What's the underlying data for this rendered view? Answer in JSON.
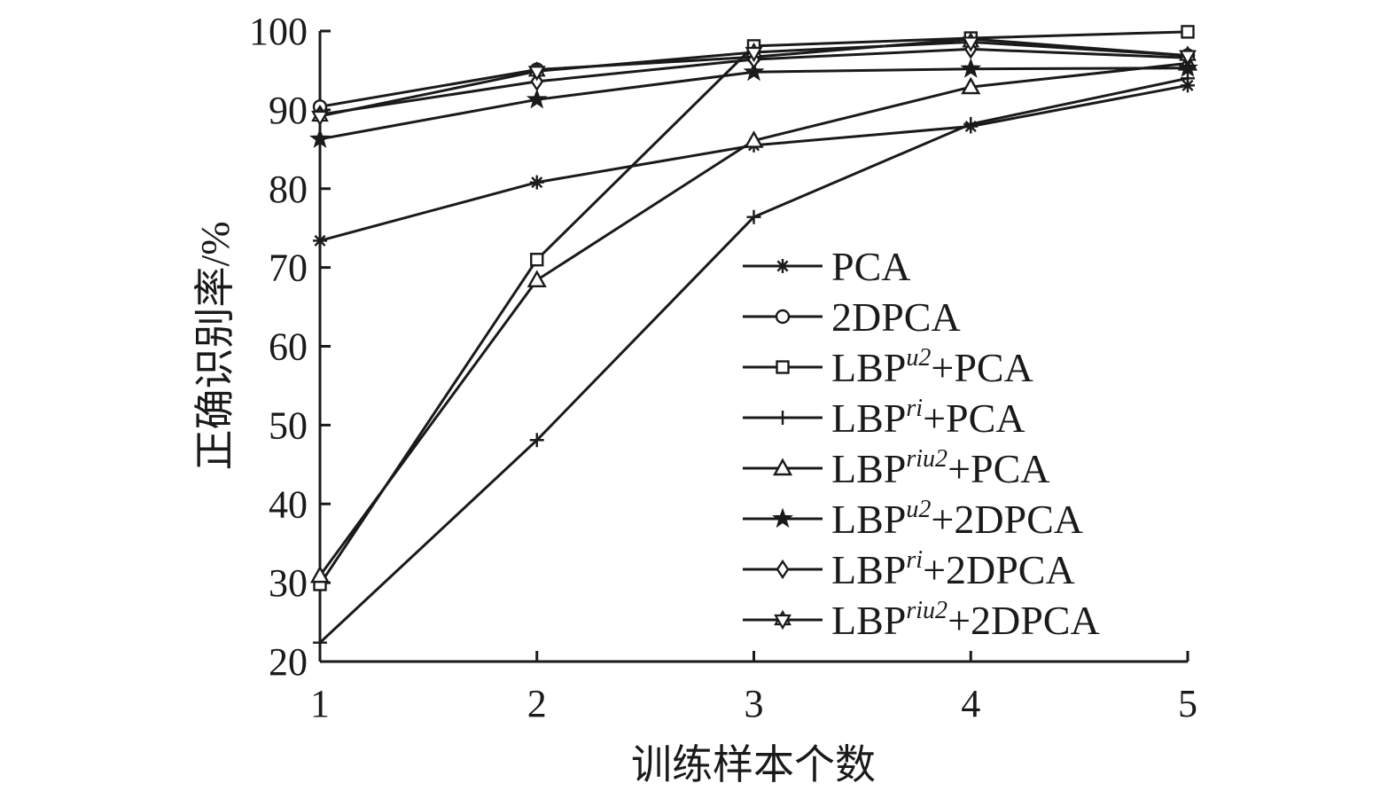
{
  "chart_data": {
    "type": "line",
    "xlabel": "训练样本个数",
    "ylabel": "正确识别率/%",
    "x": [
      1,
      2,
      3,
      4,
      5
    ],
    "x_ticks": [
      "1",
      "2",
      "3",
      "4",
      "5"
    ],
    "y_ticks": [
      "20",
      "30",
      "40",
      "50",
      "60",
      "70",
      "80",
      "90",
      "100"
    ],
    "xlim": [
      1,
      5
    ],
    "ylim": [
      20,
      100
    ],
    "grid": false,
    "legend_position": "right",
    "series": [
      {
        "name": "PCA",
        "base": "LBP",
        "sup": "",
        "rest": "",
        "label": "PCA",
        "marker": "asterisk",
        "values": [
          73.4,
          80.8,
          85.5,
          87.9,
          93.1
        ]
      },
      {
        "name": "2DPCA",
        "label": "2DPCA",
        "sup": "",
        "marker": "circle",
        "values": [
          90.4,
          95.1,
          96.7,
          99.0,
          96.9
        ]
      },
      {
        "name": "LBPu2+PCA",
        "label": "LBP",
        "sup": "u2",
        "rest": "+PCA",
        "marker": "square",
        "values": [
          29.8,
          71.0,
          98.1,
          99.1,
          99.9
        ]
      },
      {
        "name": "LBPri+PCA",
        "label": "LBP",
        "sup": "ri",
        "rest": "+PCA",
        "marker": "plus",
        "values": [
          22.4,
          48.1,
          76.4,
          88.2,
          94.0
        ]
      },
      {
        "name": "LBPriu2+PCA",
        "label": "LBP",
        "sup": "riu2",
        "rest": "+PCA",
        "marker": "triangle",
        "values": [
          30.9,
          68.4,
          86.1,
          92.9,
          95.9
        ]
      },
      {
        "name": "LBPu2+2DPCA",
        "label": "LBP",
        "sup": "u2",
        "rest": "+2DPCA",
        "marker": "star",
        "values": [
          86.3,
          91.3,
          94.8,
          95.2,
          95.3
        ]
      },
      {
        "name": "LBPri+2DPCA",
        "label": "LBP",
        "sup": "ri",
        "rest": "+2DPCA",
        "marker": "diamond",
        "values": [
          89.4,
          93.6,
          96.4,
          97.7,
          96.6
        ]
      },
      {
        "name": "LBPriu2+2DPCA",
        "label": "LBP",
        "sup": "riu2",
        "rest": "+2DPCA",
        "marker": "hexstar",
        "values": [
          89.2,
          94.9,
          97.3,
          98.6,
          96.9
        ]
      }
    ],
    "colors": {
      "line": "#1a1a1a",
      "background": "#ffffff"
    }
  }
}
